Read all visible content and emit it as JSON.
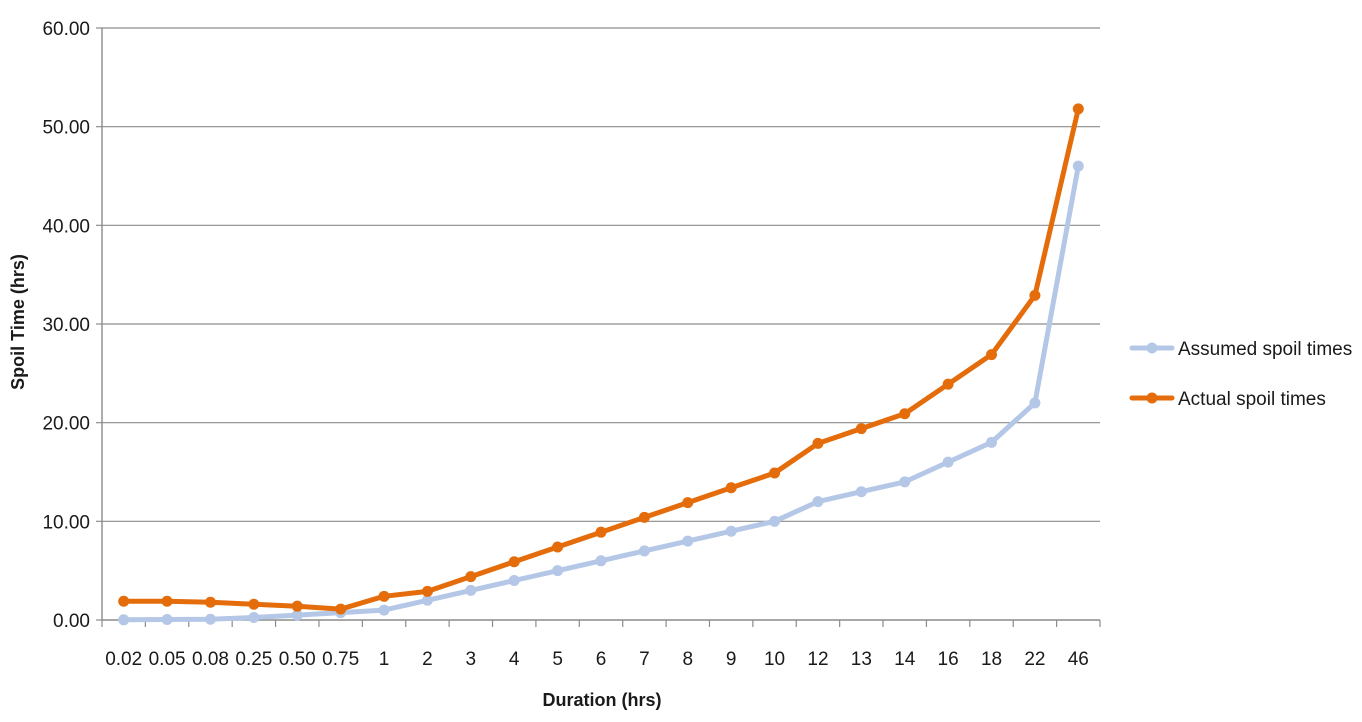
{
  "chart_data": {
    "type": "line",
    "title": "",
    "xlabel": "Duration (hrs)",
    "ylabel": "Spoil Time (hrs)",
    "ylim": [
      0,
      60
    ],
    "y_ticks": [
      "0.00",
      "10.00",
      "20.00",
      "30.00",
      "40.00",
      "50.00",
      "60.00"
    ],
    "categories": [
      "0.02",
      "0.05",
      "0.08",
      "0.25",
      "0.50",
      "0.75",
      "1",
      "2",
      "3",
      "4",
      "5",
      "6",
      "7",
      "8",
      "9",
      "10",
      "12",
      "13",
      "14",
      "16",
      "18",
      "22",
      "46"
    ],
    "grid": true,
    "legend_position": "right",
    "series": [
      {
        "name": "Assumed spoil times",
        "color": "#b4c7e7",
        "values": [
          0.02,
          0.05,
          0.08,
          0.25,
          0.5,
          0.75,
          1,
          2,
          3,
          4,
          5,
          6,
          7,
          8,
          9,
          10,
          12,
          13,
          14,
          16,
          18,
          22,
          46
        ]
      },
      {
        "name": "Actual spoil times",
        "color": "#e46c0a",
        "values": [
          1.9,
          1.9,
          1.8,
          1.6,
          1.4,
          1.1,
          2.4,
          2.9,
          4.4,
          5.9,
          7.4,
          8.9,
          10.4,
          11.9,
          13.4,
          14.9,
          17.9,
          19.4,
          20.9,
          23.9,
          26.9,
          32.9,
          51.8
        ]
      }
    ]
  }
}
